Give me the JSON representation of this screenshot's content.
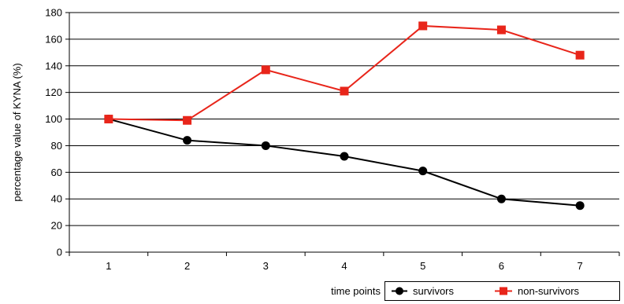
{
  "chart_data": {
    "type": "line",
    "title": "",
    "xlabel": "time points",
    "ylabel": "percentage value of KYNA (%)",
    "x": [
      1,
      2,
      3,
      4,
      5,
      6,
      7
    ],
    "x_tick_labels": [
      "1",
      "2",
      "3",
      "4",
      "5",
      "6",
      "7"
    ],
    "ylim": [
      0,
      180
    ],
    "y_ticks": [
      0,
      20,
      40,
      60,
      80,
      100,
      120,
      140,
      160,
      180
    ],
    "grid": "horizontal",
    "legend_position": "bottom-right",
    "series": [
      {
        "name": "survivors",
        "values": [
          100,
          84,
          80,
          72,
          61,
          40,
          35
        ],
        "color": "#000000",
        "marker": "circle"
      },
      {
        "name": "non-survivors",
        "values": [
          100,
          99,
          137,
          121,
          170,
          167,
          148
        ],
        "color": "#e8251a",
        "marker": "square"
      }
    ]
  }
}
